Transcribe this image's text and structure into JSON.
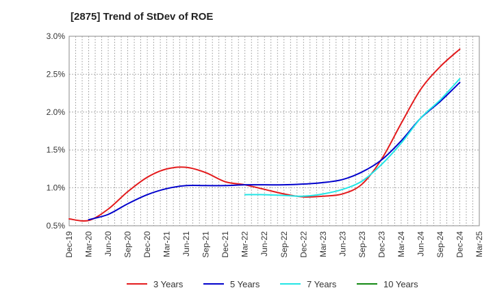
{
  "chart_data": {
    "type": "line",
    "title": "[2875]  Trend of StDev of ROE",
    "xlabel": "",
    "ylabel": "",
    "categories": [
      "Dec-19",
      "Mar-20",
      "Jun-20",
      "Sep-20",
      "Dec-20",
      "Mar-21",
      "Jun-21",
      "Sep-21",
      "Dec-21",
      "Mar-22",
      "Jun-22",
      "Sep-22",
      "Dec-22",
      "Mar-23",
      "Jun-23",
      "Sep-23",
      "Dec-23",
      "Mar-24",
      "Jun-24",
      "Sep-24",
      "Dec-24",
      "Mar-25"
    ],
    "ylim": [
      0.5,
      3.0
    ],
    "yticks": [
      0.5,
      1.0,
      1.5,
      2.0,
      2.5,
      3.0
    ],
    "ytick_labels": [
      "0.5%",
      "1.0%",
      "1.5%",
      "2.0%",
      "2.5%",
      "3.0%"
    ],
    "grid": true,
    "legend_position": "bottom",
    "series": [
      {
        "name": "3 Years",
        "color": "#e31a1c",
        "values": [
          0.59,
          0.57,
          0.72,
          0.95,
          1.14,
          1.25,
          1.27,
          1.2,
          1.08,
          1.04,
          0.98,
          0.92,
          0.88,
          0.89,
          0.92,
          1.05,
          1.38,
          1.85,
          2.3,
          2.6,
          2.83,
          null
        ]
      },
      {
        "name": "5 Years",
        "color": "#0000cc",
        "values": [
          null,
          0.58,
          0.65,
          0.79,
          0.91,
          0.99,
          1.03,
          1.03,
          1.03,
          1.04,
          1.04,
          1.04,
          1.05,
          1.07,
          1.11,
          1.21,
          1.37,
          1.62,
          1.92,
          2.14,
          2.39,
          null
        ]
      },
      {
        "name": "7 Years",
        "color": "#22e5e5",
        "values": [
          null,
          null,
          null,
          null,
          null,
          null,
          null,
          null,
          null,
          0.91,
          0.91,
          0.9,
          0.89,
          0.92,
          0.98,
          1.09,
          1.31,
          1.59,
          1.92,
          2.16,
          2.44,
          null
        ]
      },
      {
        "name": "10 Years",
        "color": "#118811",
        "values": [
          null,
          null,
          null,
          null,
          null,
          null,
          null,
          null,
          null,
          null,
          null,
          null,
          null,
          null,
          null,
          null,
          null,
          null,
          null,
          null,
          null,
          null
        ]
      }
    ]
  }
}
